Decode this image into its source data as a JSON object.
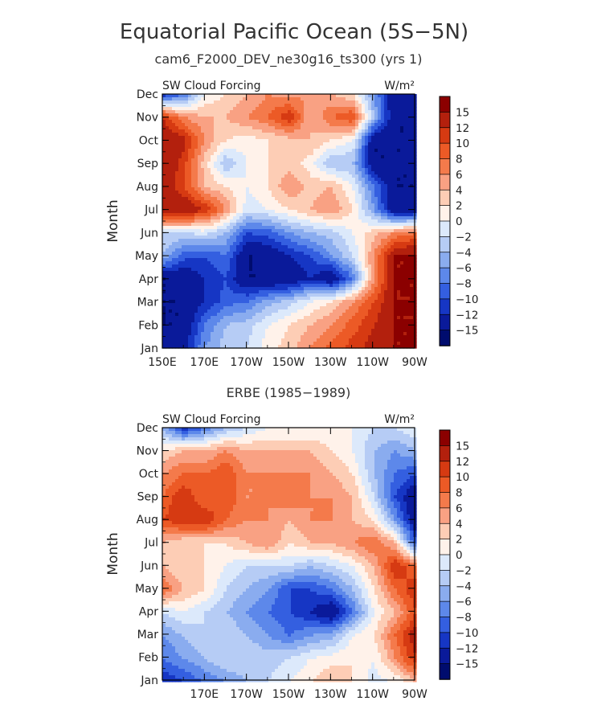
{
  "figure": {
    "title": "Equatorial Pacific Ocean (5S−5N)",
    "subtitle": "cam6_F2000_DEV_ne30g16_ts300 (yrs 1)"
  },
  "colorbar": {
    "labels": [
      "15",
      "12",
      "10",
      "8",
      "6",
      "4",
      "2",
      "0",
      "−2",
      "−4",
      "−6",
      "−8",
      "−10",
      "−12",
      "−15"
    ],
    "colors": [
      "#8b0000",
      "#b3200d",
      "#d63a12",
      "#ec5a26",
      "#f47a4b",
      "#f9a183",
      "#fdcdb5",
      "#fff2ea",
      "#dce9fb",
      "#b6ccf5",
      "#8aacef",
      "#5d88ea",
      "#345fe0",
      "#1636c4",
      "#0a1a9a",
      "#000c6e"
    ]
  },
  "chart_data": [
    {
      "type": "heatmap",
      "title": "cam6_F2000_DEV_ne30g16_ts300 (yrs 1)",
      "variable_label": "SW Cloud Forcing",
      "units_label": "W/m²",
      "ylabel": "Month",
      "x_ticks": [
        "150E",
        "170E",
        "170W",
        "150W",
        "130W",
        "110W",
        "90W"
      ],
      "y_ticks": [
        "Jan",
        "Feb",
        "Mar",
        "Apr",
        "May",
        "Jun",
        "Jul",
        "Aug",
        "Sep",
        "Oct",
        "Nov",
        "Dec"
      ],
      "x_columns": [
        "150E",
        "160E",
        "170E",
        "180",
        "170W",
        "160W",
        "150W",
        "140W",
        "130W",
        "120W",
        "110W",
        "100W",
        "90W"
      ],
      "values": [
        [
          -15,
          -13,
          -6,
          -3,
          -2,
          1,
          3,
          6,
          9,
          11,
          13,
          15,
          15
        ],
        [
          -15,
          -15,
          -8,
          -4,
          -3,
          0,
          2,
          4,
          6,
          9,
          12,
          15,
          15
        ],
        [
          -15,
          -15,
          -12,
          -9,
          -8,
          -5,
          -3,
          0,
          2,
          6,
          10,
          15,
          15
        ],
        [
          -15,
          -15,
          -12,
          -10,
          -15,
          -15,
          -15,
          -12,
          -15,
          -8,
          6,
          15,
          15
        ],
        [
          -4,
          -9,
          -10,
          -8,
          -15,
          -15,
          -12,
          -10,
          -6,
          -2,
          6,
          15,
          15
        ],
        [
          -2,
          -2,
          -1,
          -4,
          -10,
          -9,
          -6,
          -4,
          -3,
          0,
          3,
          6,
          8
        ],
        [
          15,
          15,
          12,
          6,
          -1,
          0,
          2,
          4,
          6,
          2,
          -6,
          -15,
          -15
        ],
        [
          15,
          10,
          4,
          2,
          0,
          2,
          6,
          3,
          4,
          0,
          -8,
          -15,
          -15
        ],
        [
          15,
          11,
          3,
          -4,
          0,
          2,
          3,
          1,
          -4,
          -4,
          -15,
          -15,
          -15
        ],
        [
          15,
          13,
          6,
          2,
          1,
          2,
          3,
          4,
          2,
          0,
          -15,
          -15,
          -15
        ],
        [
          12,
          6,
          4,
          4,
          6,
          8,
          12,
          4,
          8,
          10,
          -4,
          -15,
          -15
        ],
        [
          -12,
          -8,
          0,
          2,
          4,
          6,
          5,
          6,
          4,
          2,
          -6,
          -15,
          -15
        ]
      ]
    },
    {
      "type": "heatmap",
      "title": "ERBE (1985−1989)",
      "variable_label": "SW Cloud Forcing",
      "units_label": "W/m²",
      "ylabel": "Month",
      "x_ticks": [
        "170E",
        "170W",
        "150W",
        "130W",
        "110W",
        "90W"
      ],
      "y_ticks": [
        "Jan",
        "Feb",
        "Mar",
        "Apr",
        "May",
        "Jun",
        "Jul",
        "Aug",
        "Sep",
        "Oct",
        "Nov",
        "Dec"
      ],
      "x_columns": [
        "150E",
        "160E",
        "170E",
        "180",
        "170W",
        "160W",
        "150W",
        "140W",
        "130W",
        "120W",
        "110W",
        "100W",
        "90W"
      ],
      "values": [
        [
          -12,
          -10,
          -8,
          -6,
          -4,
          -2,
          0,
          2,
          4,
          2,
          -1,
          0,
          4
        ],
        [
          -8,
          -6,
          -4,
          -2,
          -2,
          -3,
          -2,
          0,
          1,
          2,
          0,
          6,
          12
        ],
        [
          -6,
          -4,
          -2,
          -2,
          -4,
          -6,
          -8,
          -6,
          -5,
          0,
          2,
          8,
          14
        ],
        [
          -2,
          0,
          -2,
          -4,
          -6,
          -8,
          -10,
          -12,
          -15,
          -8,
          0,
          4,
          10
        ],
        [
          8,
          4,
          2,
          -2,
          -4,
          -6,
          -10,
          -10,
          -8,
          -4,
          2,
          8,
          12
        ],
        [
          4,
          2,
          2,
          0,
          -2,
          -2,
          -2,
          -4,
          -2,
          0,
          4,
          12,
          8
        ],
        [
          4,
          2,
          2,
          2,
          4,
          6,
          2,
          4,
          4,
          6,
          8,
          4,
          -10
        ],
        [
          10,
          12,
          12,
          8,
          6,
          6,
          4,
          6,
          6,
          4,
          2,
          -6,
          -15
        ],
        [
          8,
          12,
          8,
          10,
          6,
          6,
          8,
          6,
          6,
          4,
          -2,
          -10,
          -15
        ],
        [
          6,
          8,
          8,
          10,
          6,
          6,
          6,
          6,
          4,
          2,
          -4,
          -8,
          -10
        ],
        [
          2,
          4,
          4,
          6,
          4,
          4,
          4,
          4,
          2,
          0,
          -4,
          -6,
          -4
        ],
        [
          -4,
          -12,
          -8,
          -4,
          -2,
          0,
          0,
          0,
          0,
          0,
          -2,
          -2,
          0
        ]
      ]
    }
  ]
}
